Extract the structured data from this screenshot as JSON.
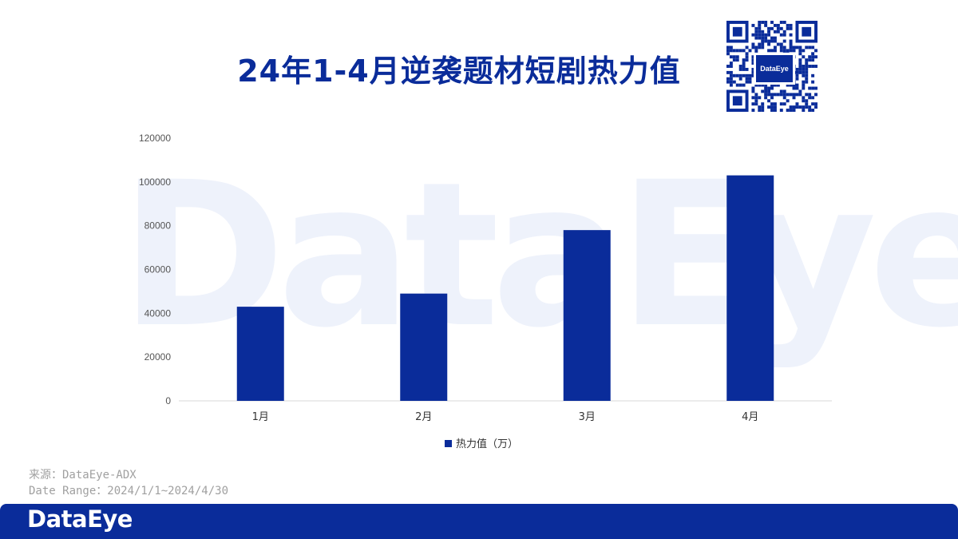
{
  "header": {
    "title": "24年1-4月逆袭题材短剧热力值",
    "qr_logo_text": "DataEye"
  },
  "watermark": "DataEye",
  "chart_data": {
    "type": "bar",
    "categories": [
      "1月",
      "2月",
      "3月",
      "4月"
    ],
    "series": [
      {
        "name": "热力值（万）",
        "values": [
          43000,
          49000,
          78000,
          103000
        ],
        "color": "#0a2c9a"
      }
    ],
    "ylim": [
      0,
      120000
    ],
    "yticks": [
      0,
      20000,
      40000,
      60000,
      80000,
      100000,
      120000
    ],
    "legend_position": "bottom-center",
    "grid": false
  },
  "source": {
    "line1": "来源：DataEye-ADX",
    "line2": "Date Range：2024/1/1~2024/4/30"
  },
  "footer": {
    "logo_text": "DataEye",
    "bg_color": "#0a2c9a"
  }
}
